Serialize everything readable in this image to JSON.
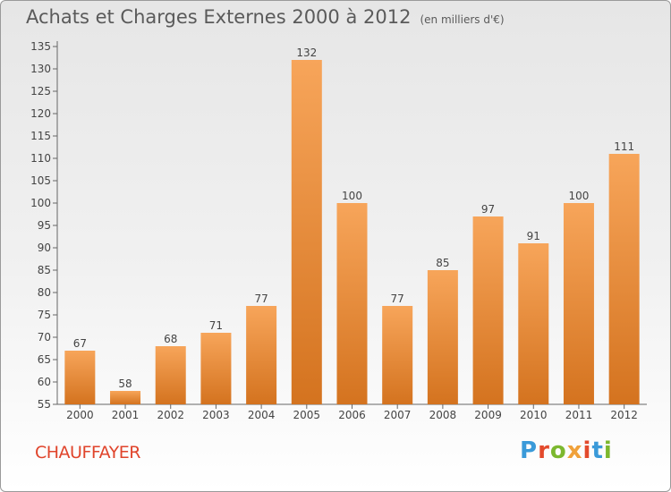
{
  "header": {
    "title": "Achats et Charges Externes 2000 à 2012",
    "unit": "(en milliers d'€)"
  },
  "footer": {
    "city": "CHAUFFAYER",
    "brand": "Proxiti",
    "brand_colors": [
      "#3a9ad9",
      "#e34a2c",
      "#7cb82f",
      "#f0a13a",
      "#e34a2c",
      "#3a9ad9",
      "#7cb82f"
    ]
  },
  "colors": {
    "bar_top": "#f7a55a",
    "bar_bottom": "#d4731f",
    "axis": "#666666",
    "grid": "#d8d8d8"
  },
  "chart_data": {
    "type": "bar",
    "title": "Achats et Charges Externes 2000 à 2012",
    "categories": [
      "2000",
      "2001",
      "2002",
      "2003",
      "2004",
      "2005",
      "2006",
      "2007",
      "2008",
      "2009",
      "2010",
      "2011",
      "2012"
    ],
    "values": [
      67,
      58,
      68,
      71,
      77,
      132,
      100,
      77,
      85,
      97,
      91,
      100,
      111
    ],
    "ylim": [
      55,
      135
    ],
    "yticks": [
      55,
      60,
      65,
      70,
      75,
      80,
      85,
      90,
      95,
      100,
      105,
      110,
      115,
      120,
      125,
      130,
      135
    ],
    "grid": false,
    "legend": "none",
    "data_labels": true
  }
}
